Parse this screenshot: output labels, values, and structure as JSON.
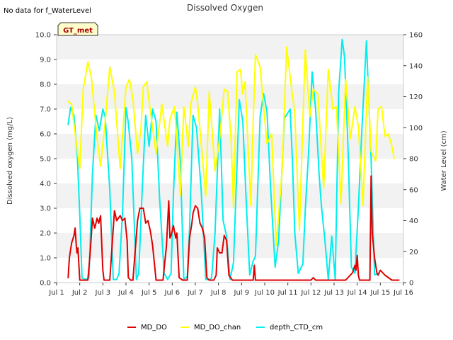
{
  "page": {
    "note": "No data for f_WaterLevel",
    "site_badge": "GT_met"
  },
  "chart_data": {
    "type": "line",
    "title": "Dissolved Oxygen",
    "ylabel": "Dissolved oxygen (mg/L)",
    "y2label": "Water Level (cm)",
    "xlim": [
      0,
      15
    ],
    "ylim": [
      0,
      10
    ],
    "y2lim": [
      0,
      160
    ],
    "x_ticks": [
      0,
      1,
      2,
      3,
      4,
      5,
      6,
      7,
      8,
      9,
      10,
      11,
      12,
      13,
      14,
      15
    ],
    "x_tick_labels": [
      "Jul 1",
      "Jul 2",
      "Jul 3",
      "Jul 4",
      "Jul 5",
      "Jul 6",
      "Jul 7",
      "Jul 8",
      "Jul 9",
      "Jul 10",
      "Jul 11",
      "Jul 12",
      "Jul 13",
      "Jul 14",
      "Jul 15",
      "Jul 16"
    ],
    "y_ticks": [
      0,
      1,
      2,
      3,
      4,
      5,
      6,
      7,
      8,
      9,
      10
    ],
    "y_tick_labels": [
      "0.0",
      "1.0",
      "2.0",
      "3.0",
      "4.0",
      "5.0",
      "6.0",
      "7.0",
      "8.0",
      "9.0",
      "10.0"
    ],
    "y2_ticks": [
      0,
      20,
      40,
      60,
      80,
      100,
      120,
      140,
      160
    ],
    "y2_tick_labels": [
      "0",
      "20",
      "40",
      "60",
      "80",
      "100",
      "120",
      "140",
      "160"
    ],
    "grid": "horizontal bands",
    "legend_position": "bottom",
    "colors": {
      "MD_DO": "#dd0000",
      "MD_DO_chan": "#ffff00",
      "depth_CTD_cm": "#00eeee",
      "band": "#f2f2f2",
      "badge_bg": "#ffffcc",
      "badge_text": "#aa0000"
    },
    "series": [
      {
        "name": "MD_DO",
        "axis": "left",
        "x": [
          0.5,
          0.55,
          0.65,
          0.75,
          0.8,
          0.85,
          0.88,
          0.92,
          1.0,
          1.2,
          1.35,
          1.45,
          1.55,
          1.65,
          1.75,
          1.82,
          1.9,
          2.0,
          2.05,
          2.15,
          2.3,
          2.5,
          2.6,
          2.75,
          2.85,
          2.95,
          3.05,
          3.1,
          3.2,
          3.3,
          3.5,
          3.6,
          3.75,
          3.85,
          3.95,
          4.05,
          4.15,
          4.3,
          4.5,
          4.6,
          4.75,
          4.85,
          4.9,
          4.95,
          5.05,
          5.15,
          5.2,
          5.3,
          5.45,
          5.65,
          5.75,
          5.85,
          5.9,
          6.0,
          6.1,
          6.2,
          6.3,
          6.4,
          6.5,
          6.6,
          6.8,
          6.9,
          6.95,
          7.05,
          7.15,
          7.25,
          7.35,
          7.45,
          7.6,
          8.0,
          8.5,
          8.55,
          8.6,
          9.0,
          9.5,
          10.0,
          10.5,
          11.0,
          11.1,
          11.2,
          11.5,
          11.8,
          12.0,
          12.5,
          12.8,
          12.9,
          12.95,
          13.0,
          13.05,
          13.1,
          13.2,
          13.4,
          13.55,
          13.6,
          13.65,
          13.75,
          13.85,
          13.9,
          14.0,
          14.2,
          14.5,
          14.8
        ],
        "values": [
          0.2,
          1.0,
          1.6,
          1.9,
          2.2,
          1.5,
          1.2,
          1.4,
          0.1,
          0.1,
          0.1,
          1.2,
          2.6,
          2.2,
          2.6,
          2.4,
          2.7,
          0.5,
          0.1,
          0.1,
          0.1,
          2.9,
          2.5,
          2.7,
          2.5,
          2.6,
          1.7,
          0.2,
          0.1,
          0.1,
          2.5,
          3.0,
          3.0,
          2.4,
          2.5,
          2.1,
          1.5,
          0.1,
          0.1,
          0.1,
          1.5,
          3.3,
          1.8,
          1.9,
          2.3,
          1.8,
          2.0,
          0.2,
          0.1,
          0.1,
          1.8,
          2.4,
          2.8,
          3.1,
          3.0,
          2.4,
          2.2,
          1.8,
          0.2,
          0.1,
          0.1,
          0.3,
          1.4,
          1.2,
          1.2,
          1.9,
          1.7,
          0.3,
          0.1,
          0.1,
          0.1,
          0.7,
          0.1,
          0.1,
          0.1,
          0.1,
          0.1,
          0.1,
          0.2,
          0.1,
          0.1,
          0.1,
          0.1,
          0.1,
          0.4,
          0.7,
          0.5,
          1.1,
          0.3,
          0.1,
          0.1,
          0.1,
          0.1,
          4.3,
          2.0,
          1.0,
          0.4,
          0.3,
          0.5,
          0.3,
          0.1,
          0.1
        ]
      },
      {
        "name": "MD_DO_chan",
        "axis": "left",
        "x": [
          0.5,
          0.65,
          0.8,
          1.0,
          1.15,
          1.35,
          1.5,
          1.75,
          1.9,
          2.1,
          2.3,
          2.5,
          2.75,
          3.0,
          3.15,
          3.3,
          3.5,
          3.65,
          3.75,
          3.9,
          4.0,
          4.3,
          4.55,
          4.8,
          4.9,
          5.1,
          5.35,
          5.5,
          5.7,
          5.8,
          6.0,
          6.1,
          6.3,
          6.45,
          6.6,
          6.85,
          7.05,
          7.25,
          7.4,
          7.55,
          7.65,
          7.8,
          7.95,
          8.05,
          8.15,
          8.4,
          8.5,
          8.6,
          8.8,
          8.95,
          9.1,
          9.3,
          9.5,
          9.75,
          9.95,
          10.1,
          10.3,
          10.5,
          10.75,
          10.95,
          11.1,
          11.3,
          11.55,
          11.75,
          11.95,
          12.1,
          12.3,
          12.5,
          12.7,
          12.9,
          13.05,
          13.25,
          13.45,
          13.6,
          13.8,
          13.9,
          14.05,
          14.2,
          14.35,
          14.5,
          14.6
        ],
        "values": [
          7.3,
          7.2,
          6.0,
          4.6,
          7.8,
          8.9,
          8.3,
          5.8,
          4.7,
          6.5,
          8.7,
          7.7,
          4.6,
          7.9,
          8.2,
          7.4,
          5.2,
          6.2,
          7.9,
          8.1,
          7.3,
          5.2,
          7.2,
          5.5,
          6.6,
          7.1,
          3.5,
          7.1,
          5.5,
          7.2,
          7.9,
          7.2,
          5.1,
          3.5,
          7.7,
          4.5,
          5.8,
          7.8,
          7.7,
          5.7,
          3.0,
          8.5,
          8.6,
          7.6,
          8.1,
          3.1,
          6.5,
          9.2,
          8.7,
          7.1,
          5.6,
          6.0,
          1.5,
          4.5,
          9.5,
          8.3,
          6.8,
          2.1,
          9.4,
          6.7,
          7.8,
          7.6,
          3.8,
          8.6,
          7.0,
          7.1,
          3.2,
          8.2,
          5.8,
          7.1,
          6.3,
          3.1,
          8.3,
          5.3,
          4.9,
          7.0,
          7.1,
          5.9,
          6.0,
          5.5,
          5.0
        ]
      },
      {
        "name": "depth_CTD_cm",
        "axis": "right",
        "x": [
          0.5,
          0.6,
          0.75,
          0.9,
          1.0,
          1.1,
          1.25,
          1.4,
          1.55,
          1.7,
          1.85,
          2.0,
          2.1,
          2.3,
          2.45,
          2.6,
          2.7,
          2.85,
          3.0,
          3.1,
          3.25,
          3.45,
          3.55,
          3.7,
          3.85,
          4.0,
          4.15,
          4.3,
          4.45,
          4.65,
          4.8,
          4.95,
          5.05,
          5.2,
          5.35,
          5.5,
          5.65,
          5.75,
          5.9,
          6.05,
          6.25,
          6.45,
          6.6,
          6.7,
          6.85,
          7.05,
          7.2,
          7.35,
          7.5,
          7.65,
          7.9,
          8.05,
          8.2,
          8.35,
          8.5,
          8.6,
          8.8,
          8.95,
          9.1,
          9.25,
          9.45,
          9.6,
          9.85,
          10.1,
          10.2,
          10.3,
          10.45,
          10.65,
          10.75,
          10.9,
          11.05,
          11.2,
          11.35,
          11.45,
          11.6,
          11.75,
          11.9,
          12.05,
          12.2,
          12.35,
          12.45,
          12.6,
          12.75,
          12.9,
          13.05,
          13.2,
          13.4,
          13.6,
          13.75,
          13.9
        ],
        "values": [
          102,
          113,
          108,
          80,
          44,
          3,
          2,
          3,
          70,
          108,
          98,
          112,
          107,
          60,
          2,
          2,
          6,
          45,
          113,
          103,
          80,
          2,
          6,
          60,
          108,
          88,
          112,
          104,
          55,
          6,
          2,
          6,
          57,
          110,
          78,
          2,
          4,
          35,
          108,
          100,
          60,
          2,
          2,
          3,
          32,
          112,
          40,
          30,
          2,
          13,
          118,
          104,
          52,
          5,
          14,
          17,
          107,
          122,
          110,
          62,
          10,
          27,
          106,
          112,
          78,
          32,
          6,
          12,
          46,
          85,
          136,
          112,
          70,
          50,
          28,
          2,
          30,
          2,
          123,
          157,
          146,
          88,
          10,
          6,
          48,
          98,
          156,
          80,
          5,
          6
        ]
      }
    ]
  }
}
